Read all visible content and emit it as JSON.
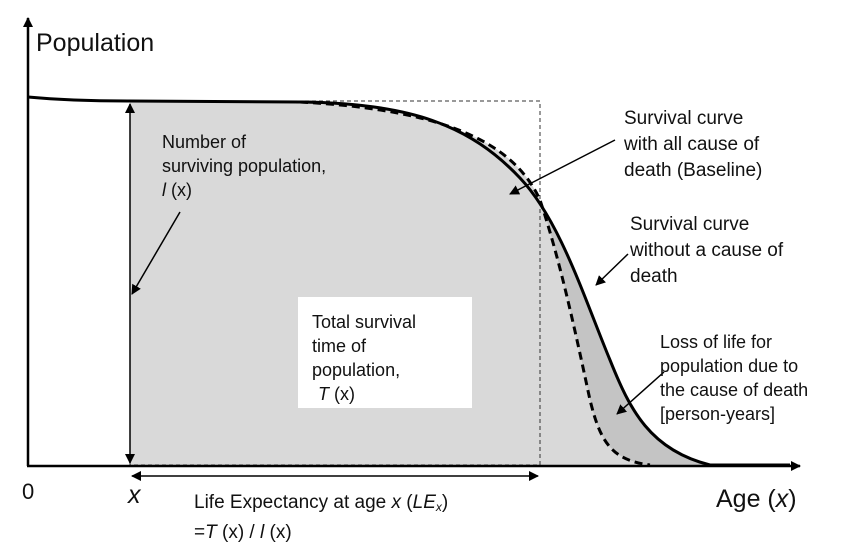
{
  "axes": {
    "y_title": "Population",
    "x_title_prefix": "Age (",
    "x_title_var": "x",
    "x_title_suffix": ")",
    "origin": "0",
    "x_tick": "x"
  },
  "labels": {
    "surviving": {
      "line1": "Number of",
      "line2": "surviving population,",
      "var": "l",
      "arg": " (x)"
    },
    "total": {
      "line1": "Total survival",
      "line2": "time of",
      "line3": "population,",
      "var": "T",
      "arg": " (x)"
    },
    "baseline": {
      "line1": "Survival curve",
      "line2": "with all cause of",
      "line3": "death (Baseline)"
    },
    "without": {
      "line1": "Survival curve",
      "line2": "without a cause of",
      "line3": "death"
    },
    "loss": {
      "line1": "Loss of life for",
      "line2": "population due to",
      "line3": "the cause of death",
      "line4": "[person-years]"
    },
    "life_expectancy": {
      "line1_prefix": "Life Expectancy at age ",
      "line1_var": "x",
      "line1_open": " (",
      "line1_le": "LE",
      "line1_sub": "x",
      "line1_close": ")",
      "line2_eq": "=",
      "line2_T": "T",
      "line2_mid": " (x) /  ",
      "line2_l": "l",
      "line2_end": " (x)"
    }
  },
  "colors": {
    "baseline_area": "#d9d9d9",
    "loss_area": "#c4c4c4",
    "curve": "#000000",
    "axis": "#000000"
  }
}
